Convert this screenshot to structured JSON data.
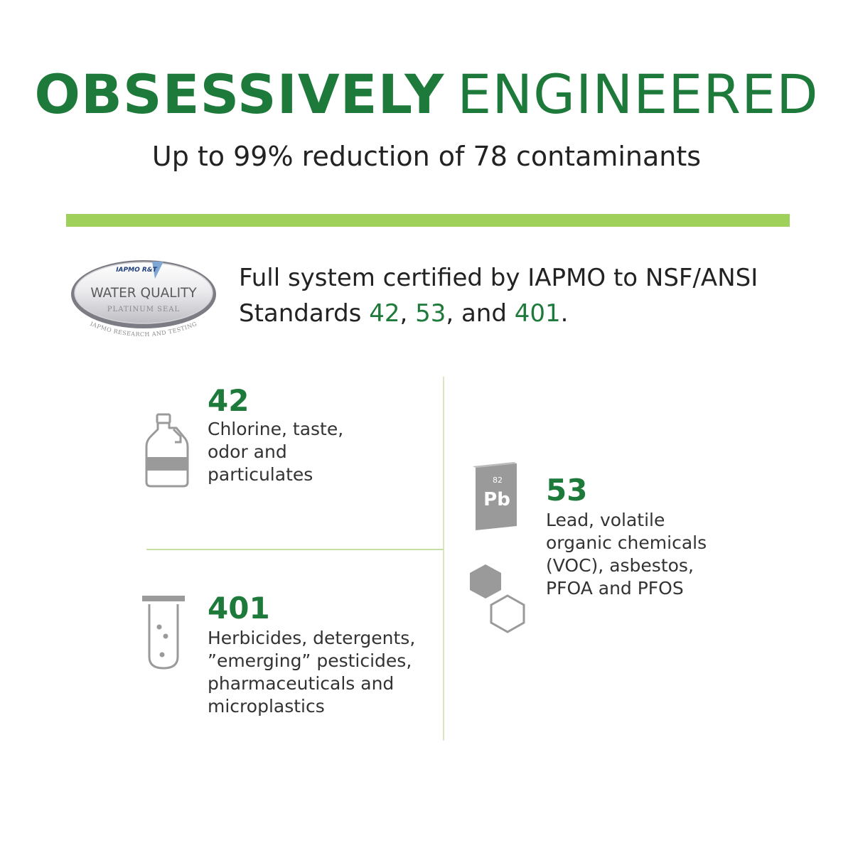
{
  "header": {
    "title_bold": "OBSESSIVELY",
    "title_light": "ENGINEERED",
    "subtitle": "Up to 99% reduction of 78 contaminants"
  },
  "seal": {
    "top_text": "IAPMO R&T",
    "main_text": "WATER QUALITY",
    "sub_text": "PLATINUM SEAL",
    "arc_text": "IAPMO RESEARCH AND TESTING"
  },
  "certification": {
    "line1": "Full system certified by IAPMO to NSF/ANSI",
    "line2_prefix": "Standards ",
    "std1": "42",
    "sep1": ", ",
    "std2": "53",
    "sep2": ", and ",
    "std3": "401",
    "line2_suffix": "."
  },
  "standards": {
    "s42": {
      "number": "42",
      "lines": [
        "Chlorine, taste,",
        "odor and",
        "particulates"
      ],
      "icon": "jug-icon"
    },
    "s53": {
      "number": "53",
      "lines": [
        "Lead, volatile",
        "organic chemicals",
        "(VOC), asbestos,",
        "PFOA and PFOS"
      ],
      "icon": "lead-element-icon",
      "element_number": "82",
      "element_symbol": "Pb"
    },
    "s401": {
      "number": "401",
      "lines": [
        "Herbicides, detergents,",
        "”emerging” pesticides,",
        "pharmaceuticals and",
        "microplastics"
      ],
      "icon": "test-tube-icon"
    }
  },
  "colors": {
    "brand_green": "#1e7a3a",
    "accent_bar": "#9fd05a",
    "divider": "#c7dfa2",
    "icon_gray": "#9a9a9a"
  }
}
